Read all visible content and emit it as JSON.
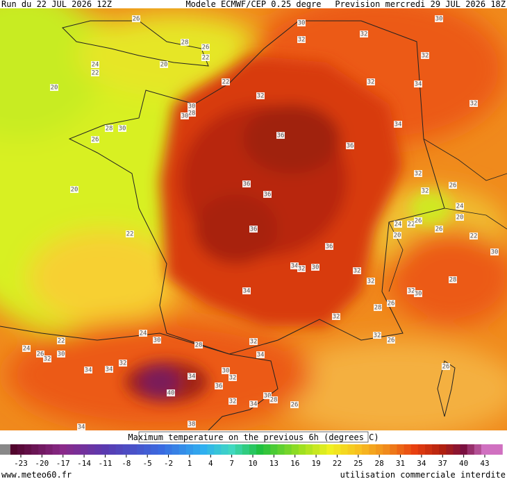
{
  "header": {
    "run": "Run du 22 JUL 2026 12Z",
    "model": "Modele ECMWF/CEP 0.25 degre",
    "forecast": "Prevision mercredi 29 JUL 2026 18Z"
  },
  "map_labels": [
    26,
    28,
    26,
    22,
    24,
    22,
    20,
    20,
    22,
    30,
    32,
    32,
    30,
    32,
    32,
    34,
    32,
    32,
    30,
    28,
    30,
    28,
    30,
    26,
    36,
    36,
    34,
    20,
    36,
    36,
    32,
    32,
    26,
    24,
    36,
    24,
    22,
    26,
    20,
    26,
    20,
    22,
    22,
    36,
    30,
    34,
    32,
    30,
    32,
    34,
    32,
    32,
    30,
    28,
    28,
    26,
    32,
    32,
    26,
    24,
    22,
    24,
    26,
    32,
    30,
    30,
    28,
    32,
    34,
    32,
    34,
    34,
    30,
    32,
    34,
    36,
    40,
    32,
    34,
    30,
    28,
    26,
    26,
    34,
    38
  ],
  "legend": {
    "caption": "Maximum temperature on the previous 6h (degrees C)",
    "ticks": [
      -23,
      -20,
      -17,
      -14,
      -11,
      -8,
      -5,
      -2,
      1,
      4,
      7,
      10,
      13,
      16,
      19,
      22,
      25,
      28,
      31,
      34,
      37,
      40,
      43
    ]
  },
  "footer": {
    "site": "www.meteo60.fr",
    "notice": "utilisation commerciale interdite"
  }
}
